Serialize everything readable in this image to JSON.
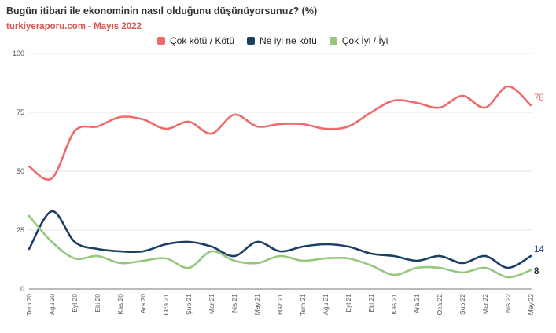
{
  "title": "Bugün itibari ile ekonominin nasıl olduğunu düşünüyorsunuz? (%)",
  "subtitle": "turkiyeraporu.com - Mayıs 2022",
  "colors": {
    "bad": "#ef6b6b",
    "neutral": "#1c3f66",
    "good": "#95c77d",
    "grid": "#e6e6e6",
    "axis": "#555555"
  },
  "chart_data": {
    "type": "line",
    "categories": [
      "Tem.20",
      "Ağu.20",
      "Eyl.20",
      "Eki.20",
      "Kas.20",
      "Ara.20",
      "Oca.21",
      "Şub.21",
      "Mar.21",
      "Nis.21",
      "May.21",
      "Haz.21",
      "Tem.21",
      "Ağu.21",
      "Eyl.21",
      "Eki.21",
      "Kas.21",
      "Ara.21",
      "Oca.22",
      "Şub.22",
      "Mar.22",
      "Nis.22",
      "May.22"
    ],
    "series": [
      {
        "name": "Çok kötü / Kötü",
        "values": [
          52,
          47,
          67,
          69,
          73,
          72,
          68,
          71,
          66,
          74,
          69,
          70,
          70,
          68,
          69,
          75,
          80,
          79,
          77,
          82,
          77,
          86,
          78
        ],
        "end_label": "78"
      },
      {
        "name": "Ne iyi ne kötü",
        "values": [
          17,
          33,
          20,
          17,
          16,
          16,
          19,
          20,
          18,
          14,
          20,
          16,
          18,
          19,
          18,
          15,
          14,
          12,
          14,
          11,
          14,
          9,
          14
        ],
        "end_label": "14"
      },
      {
        "name": "Çok İyi / İyi",
        "values": [
          31,
          20,
          13,
          14,
          11,
          12,
          13,
          9,
          16,
          12,
          11,
          14,
          12,
          13,
          13,
          10,
          6,
          9,
          9,
          7,
          9,
          5,
          8
        ],
        "end_label": "8"
      }
    ],
    "yticks": [
      "0",
      "25",
      "50",
      "75",
      "100"
    ],
    "ylim": [
      0,
      100
    ],
    "grid": true,
    "legend": "top-center"
  }
}
